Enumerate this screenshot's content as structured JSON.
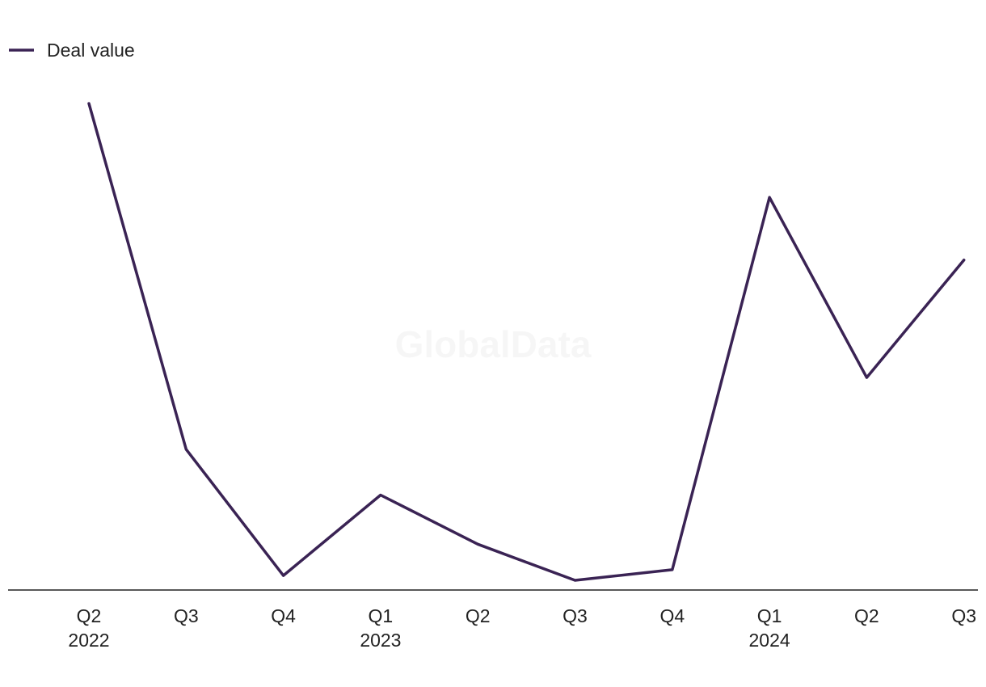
{
  "chart_data": {
    "type": "line",
    "title": "",
    "xlabel": "",
    "ylabel": "",
    "categories": [
      "Q2 2022",
      "Q3 2022",
      "Q4 2022",
      "Q1 2023",
      "Q2 2023",
      "Q3 2023",
      "Q4 2023",
      "Q1 2024",
      "Q2 2024",
      "Q3 2024"
    ],
    "tick_labels": [
      {
        "quarter": "Q2",
        "year": "2022"
      },
      {
        "quarter": "Q3",
        "year": ""
      },
      {
        "quarter": "Q4",
        "year": ""
      },
      {
        "quarter": "Q1",
        "year": "2023"
      },
      {
        "quarter": "Q2",
        "year": ""
      },
      {
        "quarter": "Q3",
        "year": ""
      },
      {
        "quarter": "Q4",
        "year": ""
      },
      {
        "quarter": "Q1",
        "year": "2024"
      },
      {
        "quarter": "Q2",
        "year": ""
      },
      {
        "quarter": "Q3",
        "year": ""
      }
    ],
    "series": [
      {
        "name": "Deal value",
        "color": "#3a2354",
        "values": [
          100,
          28.2,
          2,
          18.7,
          8.5,
          1,
          3.2,
          80.5,
          43.1,
          67.5
        ]
      }
    ],
    "ylim": [
      0,
      100
    ],
    "y_axis_labels": "none",
    "grid": false,
    "legend": "top-left"
  },
  "watermark": "GlobalData"
}
